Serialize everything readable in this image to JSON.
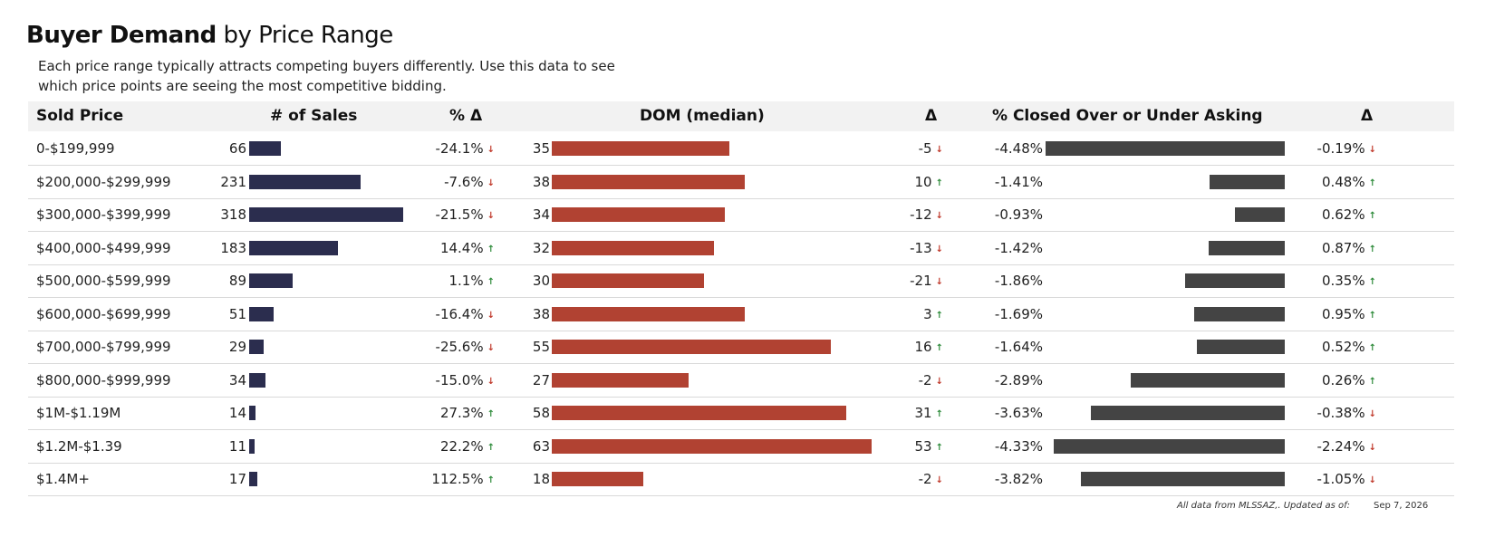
{
  "title_bold": "Buyer Demand",
  "title_rest": " by Price Range",
  "subtitle": "Each price range typically attracts competing buyers differently.  Use this data to see which price points are seeing the most competitive bidding.",
  "headers": {
    "sold_price": "Sold Price",
    "num_sales": "# of Sales",
    "pct_delta": "% Δ",
    "dom": "DOM (median)",
    "delta": "Δ",
    "closed": "% Closed Over or Under Asking",
    "closed_delta": "Δ"
  },
  "colors": {
    "sales_bar": "#2b2d4e",
    "dom_bar": "#b14232",
    "closed_bar": "#444444",
    "up_arrow": "#2e8b3a",
    "down_arrow": "#c0392b"
  },
  "footer": {
    "note": "All data from MLSSAZ,. Updated as of:",
    "date": "Sep 7, 2026"
  },
  "chart_data": {
    "type": "table",
    "columns": [
      "Sold Price",
      "# of Sales",
      "% Δ",
      "DOM (median)",
      "Δ",
      "% Closed Over or Under Asking",
      "Δ"
    ],
    "rows": [
      {
        "price": "0-$199,999",
        "sales": 66,
        "sales_change": "-24.1%",
        "sales_dir": "down",
        "dom": 35,
        "dom_change": "-5",
        "dom_dir": "down",
        "closed": -4.48,
        "closed_label": "-4.48%",
        "closed_change": "-0.19%",
        "closed_dir": "down"
      },
      {
        "price": "$200,000-$299,999",
        "sales": 231,
        "sales_change": "-7.6%",
        "sales_dir": "down",
        "dom": 38,
        "dom_change": "10",
        "dom_dir": "up",
        "closed": -1.41,
        "closed_label": "-1.41%",
        "closed_change": "0.48%",
        "closed_dir": "up"
      },
      {
        "price": "$300,000-$399,999",
        "sales": 318,
        "sales_change": "-21.5%",
        "sales_dir": "down",
        "dom": 34,
        "dom_change": "-12",
        "dom_dir": "down",
        "closed": -0.93,
        "closed_label": "-0.93%",
        "closed_change": "0.62%",
        "closed_dir": "up"
      },
      {
        "price": "$400,000-$499,999",
        "sales": 183,
        "sales_change": "14.4%",
        "sales_dir": "up",
        "dom": 32,
        "dom_change": "-13",
        "dom_dir": "down",
        "closed": -1.42,
        "closed_label": "-1.42%",
        "closed_change": "0.87%",
        "closed_dir": "up"
      },
      {
        "price": "$500,000-$599,999",
        "sales": 89,
        "sales_change": "1.1%",
        "sales_dir": "up",
        "dom": 30,
        "dom_change": "-21",
        "dom_dir": "down",
        "closed": -1.86,
        "closed_label": "-1.86%",
        "closed_change": "0.35%",
        "closed_dir": "up"
      },
      {
        "price": "$600,000-$699,999",
        "sales": 51,
        "sales_change": "-16.4%",
        "sales_dir": "down",
        "dom": 38,
        "dom_change": "3",
        "dom_dir": "up",
        "closed": -1.69,
        "closed_label": "-1.69%",
        "closed_change": "0.95%",
        "closed_dir": "up"
      },
      {
        "price": "$700,000-$799,999",
        "sales": 29,
        "sales_change": "-25.6%",
        "sales_dir": "down",
        "dom": 55,
        "dom_change": "16",
        "dom_dir": "up",
        "closed": -1.64,
        "closed_label": "-1.64%",
        "closed_change": "0.52%",
        "closed_dir": "up"
      },
      {
        "price": "$800,000-$999,999",
        "sales": 34,
        "sales_change": "-15.0%",
        "sales_dir": "down",
        "dom": 27,
        "dom_change": "-2",
        "dom_dir": "down",
        "closed": -2.89,
        "closed_label": "-2.89%",
        "closed_change": "0.26%",
        "closed_dir": "up"
      },
      {
        "price": "$1M-$1.19M",
        "sales": 14,
        "sales_change": "27.3%",
        "sales_dir": "up",
        "dom": 58,
        "dom_change": "31",
        "dom_dir": "up",
        "closed": -3.63,
        "closed_label": "-3.63%",
        "closed_change": "-0.38%",
        "closed_dir": "down"
      },
      {
        "price": "$1.2M-$1.39",
        "sales": 11,
        "sales_change": "22.2%",
        "sales_dir": "up",
        "dom": 63,
        "dom_change": "53",
        "dom_dir": "up",
        "closed": -4.33,
        "closed_label": "-4.33%",
        "closed_change": "-2.24%",
        "closed_dir": "down"
      },
      {
        "price": "$1.4M+",
        "sales": 17,
        "sales_change": "112.5%",
        "sales_dir": "up",
        "dom": 18,
        "dom_change": "-2",
        "dom_dir": "down",
        "closed": -3.82,
        "closed_label": "-3.82%",
        "closed_change": "-1.05%",
        "closed_dir": "down"
      }
    ]
  }
}
